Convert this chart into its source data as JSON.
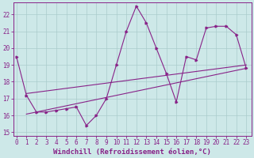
{
  "xlabel": "Windchill (Refroidissement éolien,°C)",
  "bg_color": "#cde8e8",
  "line_color": "#882288",
  "grid_color": "#aacccc",
  "x_data": [
    0,
    1,
    2,
    3,
    4,
    5,
    6,
    7,
    8,
    9,
    10,
    11,
    12,
    13,
    14,
    15,
    16,
    17,
    18,
    19,
    20,
    21,
    22,
    23
  ],
  "y_main": [
    19.5,
    17.2,
    16.2,
    16.2,
    16.3,
    16.4,
    16.5,
    15.4,
    16.0,
    17.0,
    19.0,
    21.0,
    22.5,
    21.5,
    20.0,
    18.5,
    16.8,
    19.5,
    19.3,
    21.2,
    21.3,
    21.3,
    20.8,
    18.8
  ],
  "trend1_start": 17.3,
  "trend1_end": 19.0,
  "trend2_start": 16.2,
  "trend2_end": 18.8,
  "xlim_min": -0.3,
  "xlim_max": 23.5,
  "ylim_min": 14.8,
  "ylim_max": 22.7,
  "yticks": [
    15,
    16,
    17,
    18,
    19,
    20,
    21,
    22
  ],
  "xticks": [
    0,
    1,
    2,
    3,
    4,
    5,
    6,
    7,
    8,
    9,
    10,
    11,
    12,
    13,
    14,
    15,
    16,
    17,
    18,
    19,
    20,
    21,
    22,
    23
  ],
  "tick_fontsize": 5.5,
  "label_fontsize": 6.5
}
